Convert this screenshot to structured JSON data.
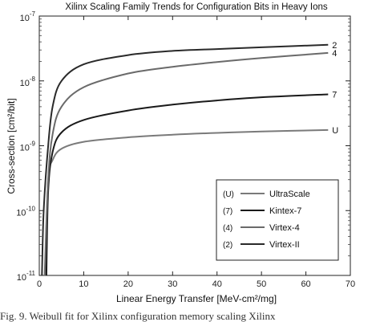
{
  "caption": "Fig. 9.   Weibull fit  for Xilinx  configuration memory   scaling Xilinx",
  "chart_data": {
    "type": "line",
    "title": "Xilinx Scaling Family Trends for Configuration Bits in Heavy Ions",
    "xlabel": "Linear Energy Transfer [MeV-cm²/mg]",
    "ylabel": "Cross-section [cm²/bit]",
    "xlim": [
      0,
      70
    ],
    "ylim": [
      1e-11,
      1e-07
    ],
    "y_scale": "log",
    "grid": false,
    "x_ticks": [
      {
        "value": 0,
        "label": "0"
      },
      {
        "value": 10,
        "label": "10"
      },
      {
        "value": 20,
        "label": "20"
      },
      {
        "value": 30,
        "label": "30"
      },
      {
        "value": 40,
        "label": "40"
      },
      {
        "value": 50,
        "label": "50"
      },
      {
        "value": 60,
        "label": "60"
      },
      {
        "value": 70,
        "label": "70"
      }
    ],
    "y_ticks": [
      {
        "value": 1e-11,
        "base": "10",
        "exp": "-11"
      },
      {
        "value": 1e-10,
        "base": "10",
        "exp": "-10"
      },
      {
        "value": 1e-09,
        "base": "10",
        "exp": "-9"
      },
      {
        "value": 1e-08,
        "base": "10",
        "exp": "-8"
      },
      {
        "value": 1e-07,
        "base": "10",
        "exp": "-7"
      }
    ],
    "legend_position": "lower-right",
    "series": [
      {
        "name": "UltraScale",
        "code": "(U)",
        "end_label": "U",
        "color": "#7a7a7a",
        "points": [
          [
            1.3,
            1e-11
          ],
          [
            2,
            3e-10
          ],
          [
            3,
            6e-10
          ],
          [
            5,
            9e-10
          ],
          [
            10,
            1.15e-09
          ],
          [
            20,
            1.35e-09
          ],
          [
            30,
            1.48e-09
          ],
          [
            40,
            1.58e-09
          ],
          [
            50,
            1.66e-09
          ],
          [
            65,
            1.75e-09
          ]
        ]
      },
      {
        "name": "Kintex-7",
        "code": "(7)",
        "end_label": "7",
        "color": "#1a1a1a",
        "points": [
          [
            1.6,
            1e-11
          ],
          [
            2,
            2e-10
          ],
          [
            3,
            8e-10
          ],
          [
            5,
            1.6e-09
          ],
          [
            10,
            2.5e-09
          ],
          [
            20,
            3.5e-09
          ],
          [
            30,
            4.3e-09
          ],
          [
            40,
            5e-09
          ],
          [
            50,
            5.6e-09
          ],
          [
            65,
            6.2e-09
          ]
        ]
      },
      {
        "name": "Virtex-4",
        "code": "(4)",
        "end_label": "4",
        "color": "#6a6a6a",
        "points": [
          [
            1.2,
            1e-11
          ],
          [
            2,
            3e-10
          ],
          [
            3,
            1.5e-09
          ],
          [
            5,
            4e-09
          ],
          [
            10,
            8e-09
          ],
          [
            20,
            1.3e-08
          ],
          [
            30,
            1.65e-08
          ],
          [
            40,
            1.95e-08
          ],
          [
            50,
            2.25e-08
          ],
          [
            65,
            2.7e-08
          ]
        ]
      },
      {
        "name": "Virtex-II",
        "code": "(2)",
        "end_label": "2",
        "color": "#2a2a2a",
        "points": [
          [
            0.6,
            1e-11
          ],
          [
            1,
            1e-10
          ],
          [
            2,
            1e-09
          ],
          [
            3,
            4e-09
          ],
          [
            5,
            1e-08
          ],
          [
            10,
            1.8e-08
          ],
          [
            20,
            2.5e-08
          ],
          [
            30,
            2.9e-08
          ],
          [
            40,
            3.1e-08
          ],
          [
            50,
            3.3e-08
          ],
          [
            65,
            3.6e-08
          ]
        ]
      }
    ]
  }
}
